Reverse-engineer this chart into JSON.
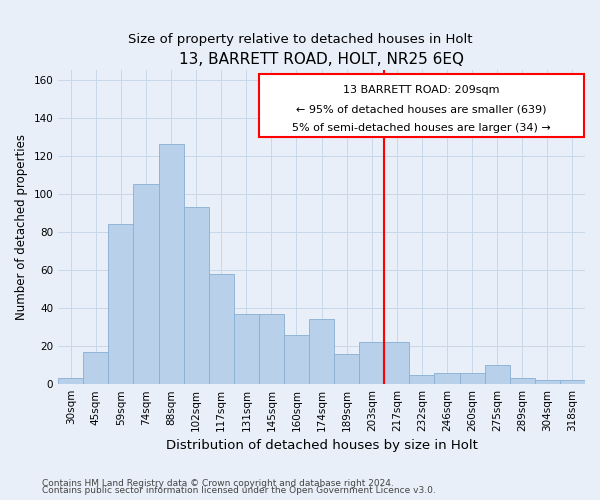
{
  "title": "13, BARRETT ROAD, HOLT, NR25 6EQ",
  "subtitle": "Size of property relative to detached houses in Holt",
  "xlabel": "Distribution of detached houses by size in Holt",
  "ylabel": "Number of detached properties",
  "footnote1": "Contains HM Land Registry data © Crown copyright and database right 2024.",
  "footnote2": "Contains public sector information licensed under the Open Government Licence v3.0.",
  "bar_labels": [
    "30sqm",
    "45sqm",
    "59sqm",
    "74sqm",
    "88sqm",
    "102sqm",
    "117sqm",
    "131sqm",
    "145sqm",
    "160sqm",
    "174sqm",
    "189sqm",
    "203sqm",
    "217sqm",
    "232sqm",
    "246sqm",
    "260sqm",
    "275sqm",
    "289sqm",
    "304sqm",
    "318sqm"
  ],
  "bar_values": [
    3,
    17,
    84,
    105,
    126,
    93,
    58,
    37,
    37,
    26,
    34,
    16,
    22,
    22,
    5,
    6,
    6,
    10,
    3,
    2,
    2
  ],
  "bar_color": "#b8d0ea",
  "bar_edge_color": "#88afd4",
  "grid_color": "#c8d8e8",
  "background_color": "#e8eff8",
  "annotation_text_line1": "13 BARRETT ROAD: 209sqm",
  "annotation_text_line2": "← 95% of detached houses are smaller (639)",
  "annotation_text_line3": "5% of semi-detached houses are larger (34) →",
  "vline_index": 12,
  "ylim": [
    0,
    165
  ],
  "yticks": [
    0,
    20,
    40,
    60,
    80,
    100,
    120,
    140,
    160
  ],
  "title_fontsize": 11,
  "subtitle_fontsize": 9.5,
  "xlabel_fontsize": 9.5,
  "ylabel_fontsize": 8.5,
  "tick_fontsize": 7.5,
  "annot_fontsize": 8,
  "footnote_fontsize": 6.5
}
